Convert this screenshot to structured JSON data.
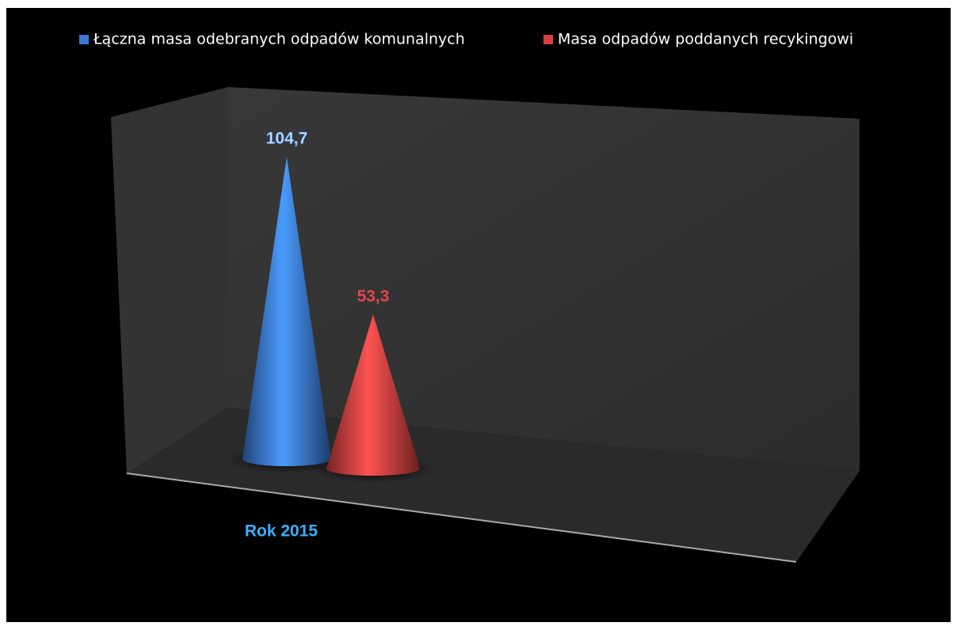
{
  "chart_data": {
    "type": "cone",
    "categories": [
      "Rok 2015"
    ],
    "series": [
      {
        "name": "Łączna masa odebranych odpadów komunalnych",
        "color": "#3a78d4",
        "values": [
          104.7
        ],
        "value_labels": [
          "104,7"
        ]
      },
      {
        "name": "Masa odpadów poddanych recykingowi",
        "color": "#d84040",
        "values": [
          53.3
        ],
        "value_labels": [
          "53,3"
        ]
      }
    ],
    "legend": "top"
  }
}
